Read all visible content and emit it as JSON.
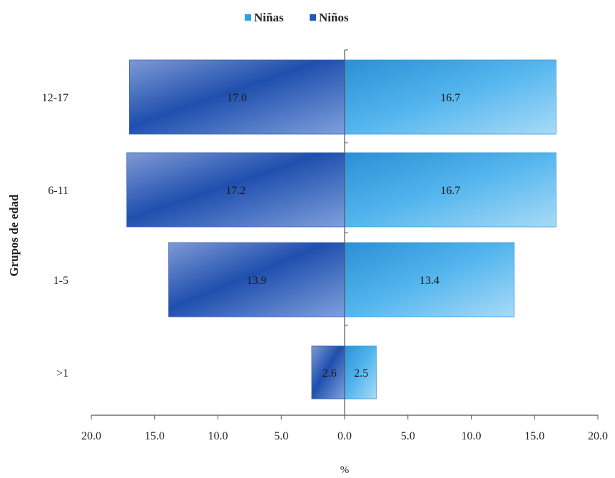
{
  "chart_data": {
    "type": "bar",
    "orientation": "horizontal",
    "layout": "population-pyramid",
    "categories": [
      ">1",
      "1-5",
      "6-11",
      "12-17"
    ],
    "series": [
      {
        "name": "Niños",
        "side": "left",
        "values": [
          2.6,
          13.9,
          17.2,
          17.0
        ],
        "color": "#1f5bb5"
      },
      {
        "name": "Niñas",
        "side": "right",
        "values": [
          2.5,
          13.4,
          16.7,
          16.7
        ],
        "color": "#29a3e3"
      }
    ],
    "data_labels": {
      "left": [
        "2.6",
        "13.9",
        "17.2",
        "17.0"
      ],
      "right": [
        "2.5",
        "13.4",
        "16.7",
        "16.7"
      ]
    },
    "legend": {
      "position": "top-center",
      "order": [
        "Niñas",
        "Niños"
      ]
    },
    "xlabel": "%",
    "ylabel": "Grupos de edad",
    "xlim": [
      -20,
      20
    ],
    "x_ticks": [
      -20,
      -15,
      -10,
      -5,
      0,
      5,
      10,
      15,
      20
    ],
    "x_tick_labels": [
      "20.0",
      "15.0",
      "10.0",
      "5.0",
      "0.0",
      "5.0",
      "10.0",
      "15.0",
      "20.0"
    ],
    "grid": false
  }
}
